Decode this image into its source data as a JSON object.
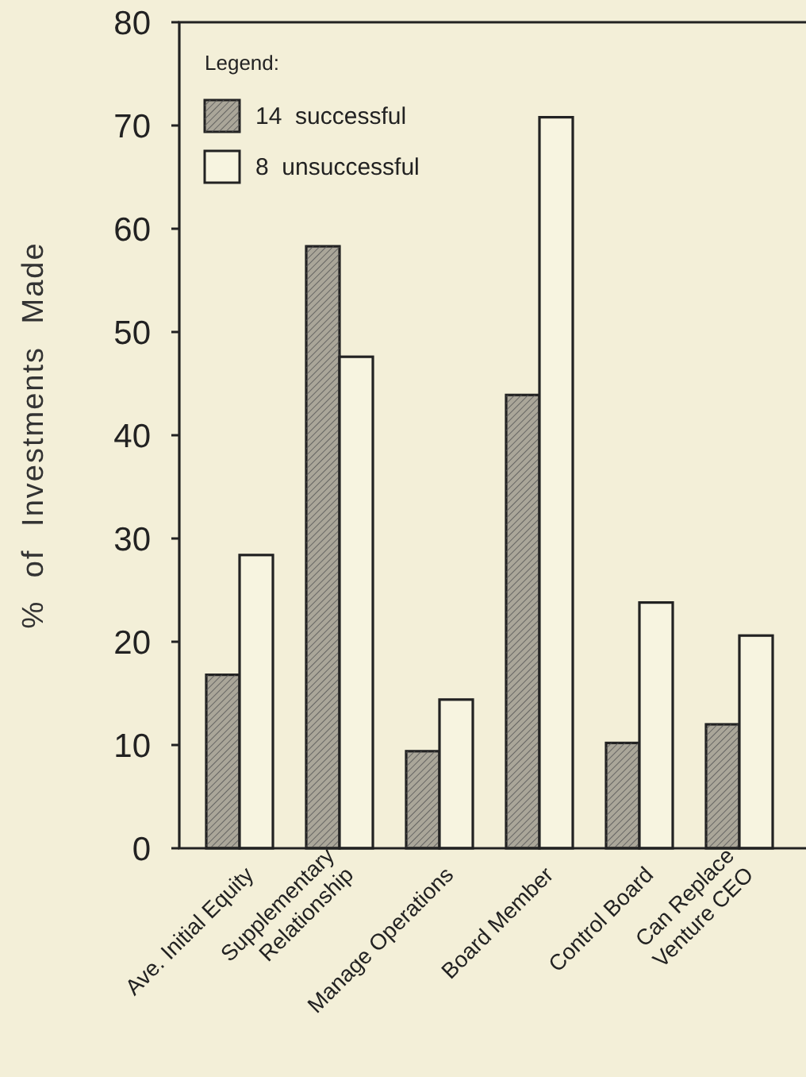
{
  "chart_data": {
    "type": "bar",
    "ylabel": "% of Investments Made",
    "legend_title": "Legend:",
    "legend": "top left",
    "categories": [
      "Ave. Initial Equity",
      "Supplementary\nRelationship",
      "Manage Operations",
      "Board Member",
      "Control Board",
      "Can Replace\nVenture CEO"
    ],
    "series": [
      {
        "name": "14  successful",
        "color": "#aaa699",
        "values": [
          16.8,
          58.3,
          9.4,
          43.9,
          10.2,
          12.0
        ]
      },
      {
        "name": "8  unsuccessful",
        "color": "#f7f4e0",
        "values": [
          28.4,
          47.6,
          14.4,
          70.8,
          23.8,
          20.6
        ]
      }
    ],
    "ylim": [
      0,
      80
    ],
    "yticks": [
      0,
      10,
      20,
      30,
      40,
      50,
      60,
      70,
      80
    ],
    "grid": false
  }
}
